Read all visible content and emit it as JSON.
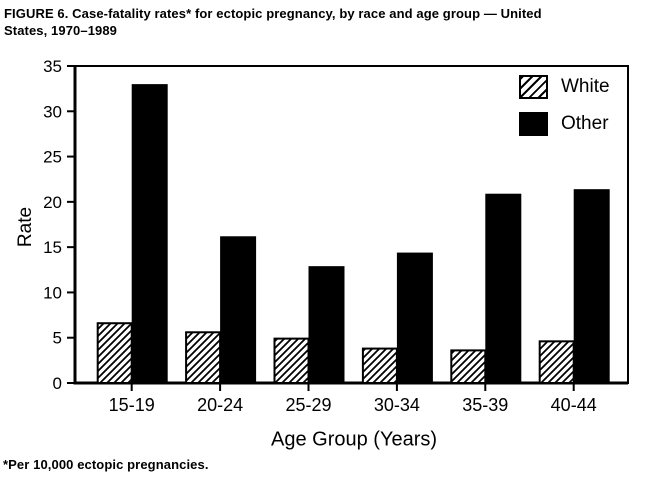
{
  "header": {
    "text": "FIGURE 6. Case-fatality rates* for ectopic pregnancy, by race and age group — United\nStates, 1970–1989"
  },
  "footnote": "*Per 10,000 ectopic pregnancies.",
  "chart_data": {
    "type": "bar",
    "title": "FIGURE 6. Case-fatality rates* for ectopic pregnancy, by race and age group — United States, 1970–1989",
    "categories": [
      "15-19",
      "20-24",
      "25-29",
      "30-34",
      "35-39",
      "40-44"
    ],
    "series": [
      {
        "name": "White",
        "style": "hatched",
        "values": [
          6.6,
          5.6,
          4.9,
          3.8,
          3.6,
          4.6
        ]
      },
      {
        "name": "Other",
        "style": "solid-black",
        "values": [
          33.0,
          16.2,
          12.9,
          14.4,
          20.9,
          21.4
        ]
      }
    ],
    "xlabel": "Age Group (Years)",
    "ylabel": "Rate",
    "ylim": [
      0,
      35
    ],
    "yticks": [
      0,
      5,
      10,
      15,
      20,
      25,
      30,
      35
    ],
    "grid": false,
    "legend_position": "top-right-inside",
    "colors": {
      "foreground": "#000000",
      "background": "#ffffff"
    }
  }
}
